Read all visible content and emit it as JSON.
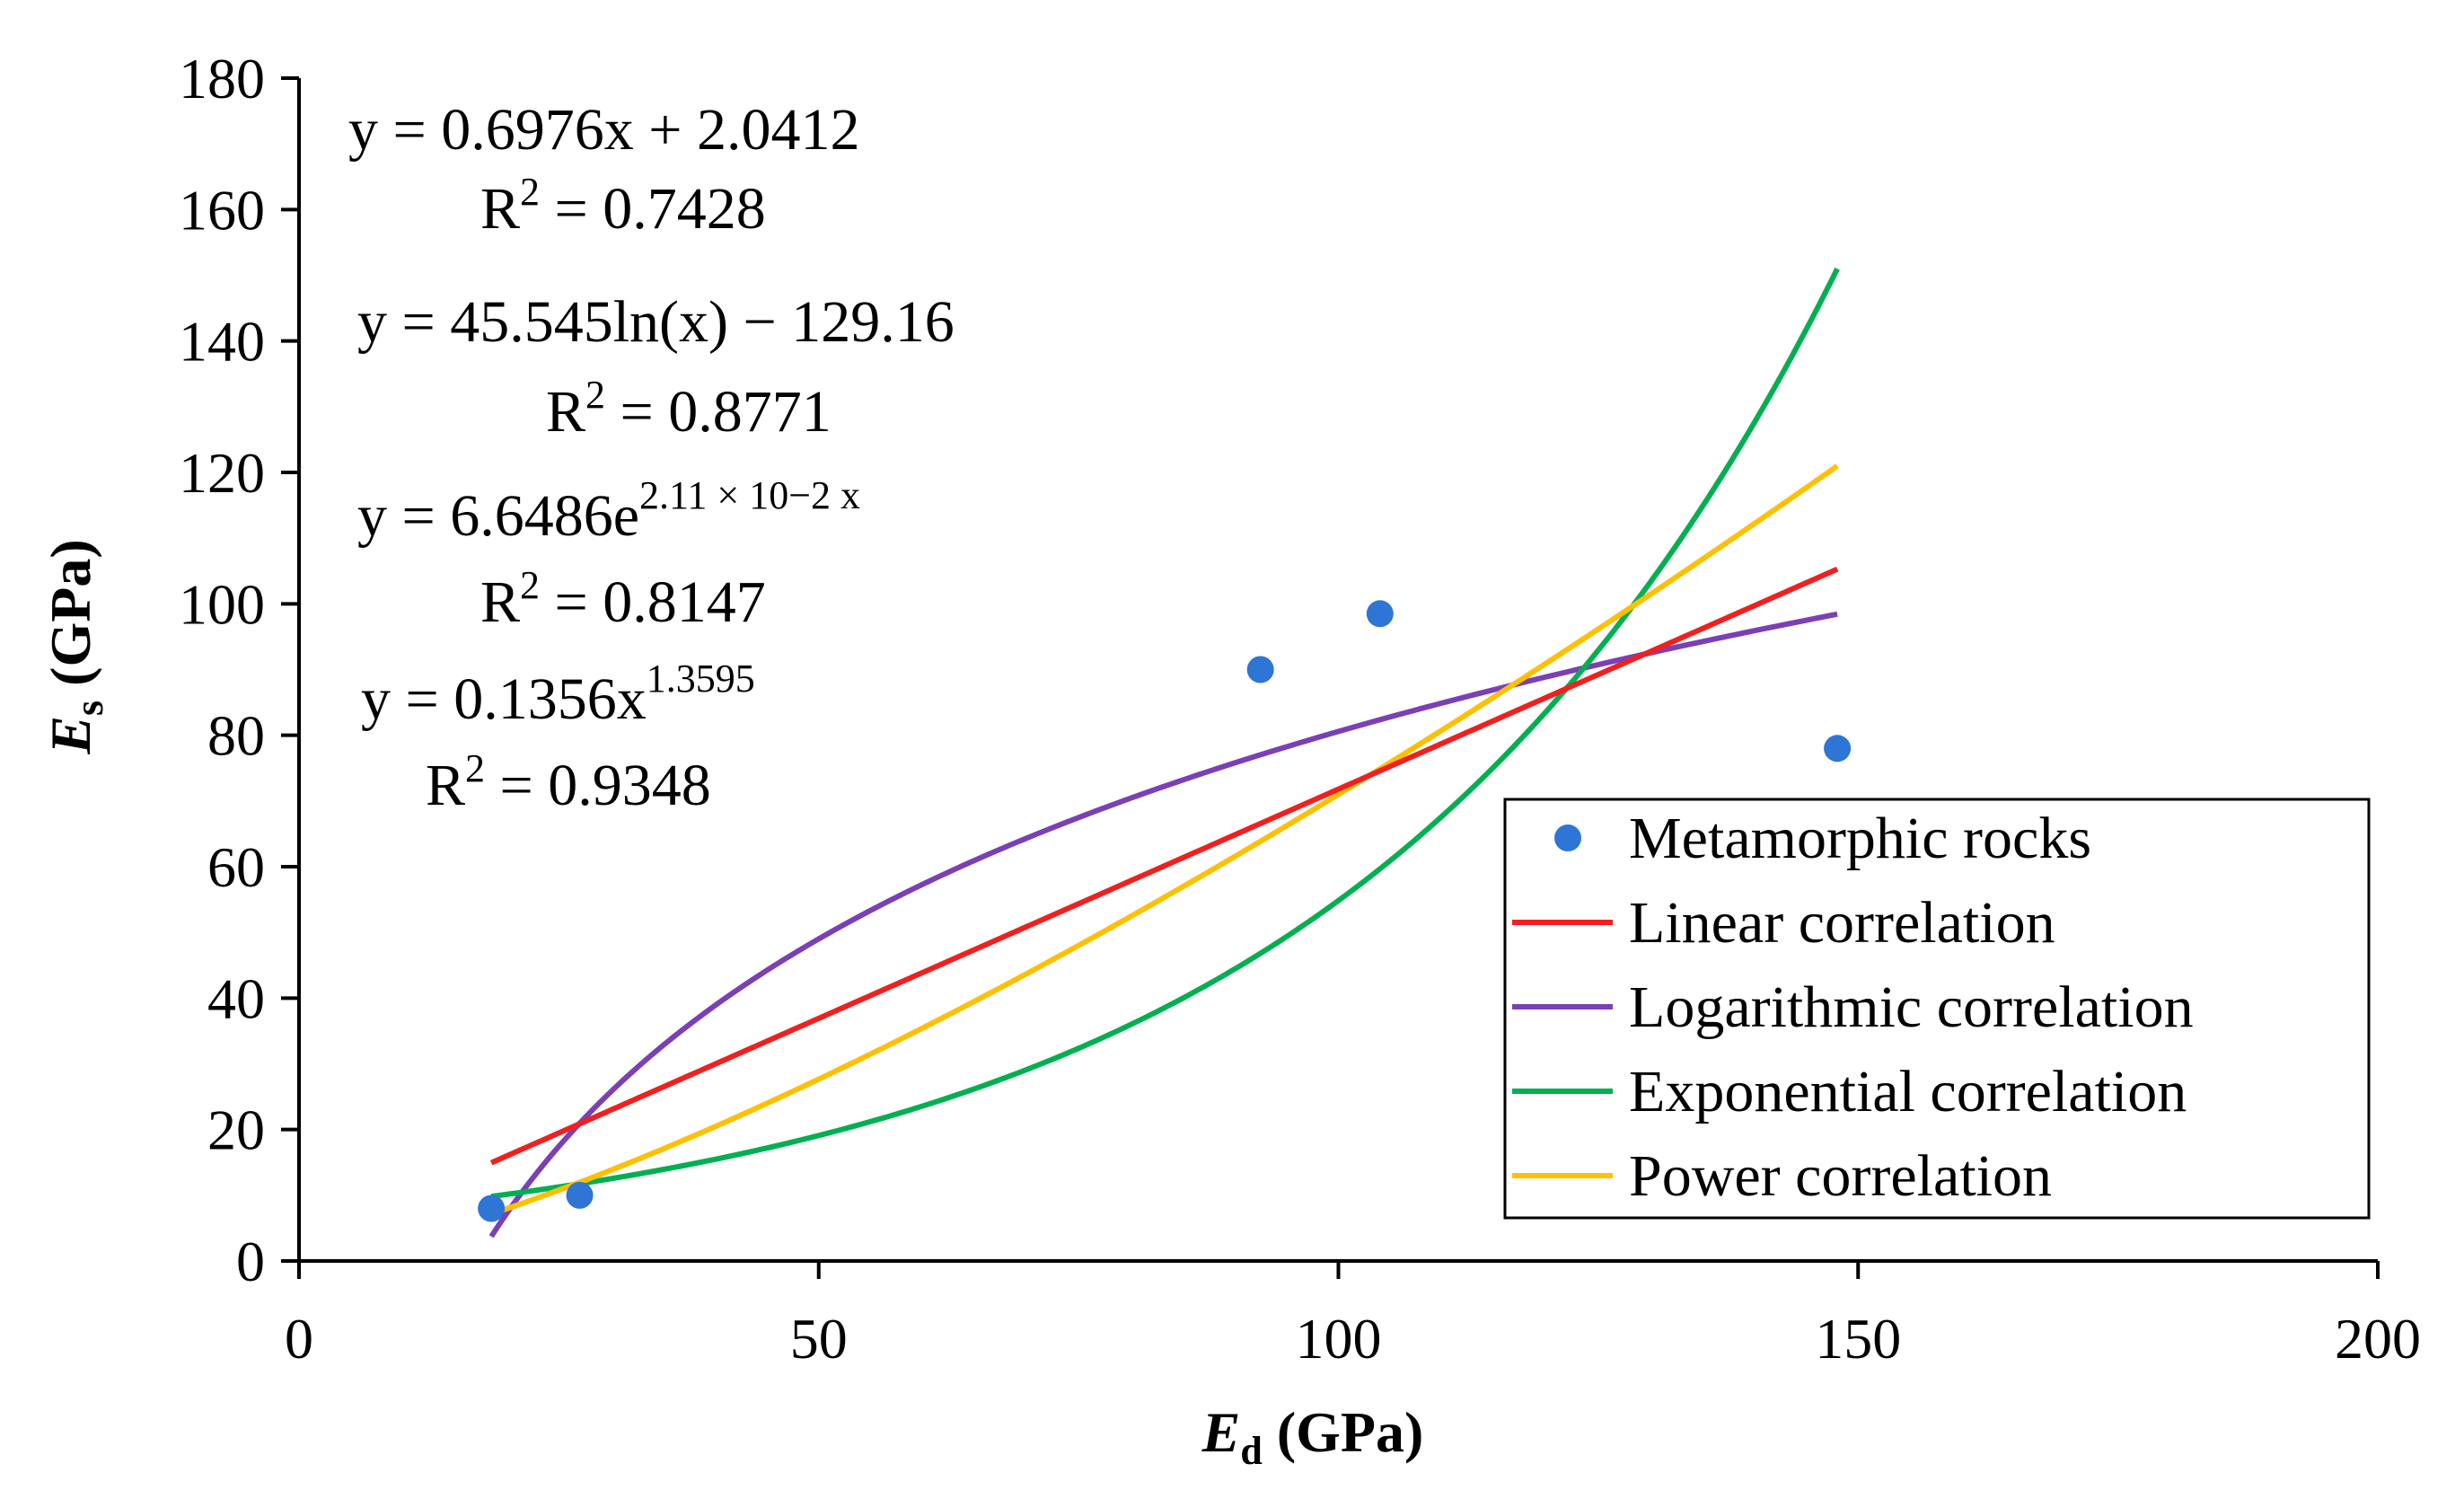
{
  "chart_data": {
    "type": "scatter",
    "title": "",
    "xlabel": {
      "main": "E",
      "sub": "d",
      "unit": " (GPa)"
    },
    "ylabel": {
      "main": "E",
      "sub": "s",
      "unit": " (GPa)"
    },
    "xlim": [
      0,
      200
    ],
    "ylim": [
      0,
      180
    ],
    "x_ticks": [
      0,
      50,
      100,
      150,
      200
    ],
    "y_ticks": [
      0,
      20,
      40,
      60,
      80,
      100,
      120,
      140,
      160,
      180
    ],
    "grid": false,
    "legend_position": "bottom-right",
    "points": {
      "name": "Metamorphic rocks",
      "color": "#2E75D6",
      "x": [
        18.5,
        27,
        92.5,
        104,
        148
      ],
      "y": [
        8,
        10,
        90,
        98.5,
        78
      ]
    },
    "fits": [
      {
        "name": "Linear correlation",
        "color": "#F21F1F",
        "kind": "linear",
        "a": 0.6976,
        "b": 2.0412,
        "x_range": [
          18.5,
          148
        ]
      },
      {
        "name": "Logarithmic correlation",
        "color": "#7B3FB6",
        "kind": "log",
        "a": 45.545,
        "b": -129.16,
        "x_range": [
          18.5,
          148
        ]
      },
      {
        "name": "Exponential correlation",
        "color": "#00B050",
        "kind": "exp",
        "a": 6.6486,
        "b": 0.0211,
        "x_range": [
          18.5,
          148
        ]
      },
      {
        "name": "Power correlation",
        "color": "#FFC000",
        "kind": "power",
        "a": 0.1356,
        "b": 1.3595,
        "x_range": [
          18.5,
          148
        ]
      }
    ],
    "annotations": [
      {
        "eq": "y = 0.6976x + 2.0412",
        "r2_label": "R",
        "r2_sup": "2",
        "r2_value": " = 0.7428"
      },
      {
        "eq": "y = 45.545ln(x) − 129.16",
        "r2_label": "R",
        "r2_sup": "2",
        "r2_value": " = 0.8771"
      },
      {
        "eq": "y = 6.6486e",
        "eq_sup": "2.11 × 10−2",
        "eq_tail": " x",
        "r2_label": "R",
        "r2_sup": "2",
        "r2_value": " = 0.8147"
      },
      {
        "eq": "y = 0.1356x",
        "eq_sup": "1.3595",
        "r2_label": "R",
        "r2_sup": "2",
        "r2_value": " = 0.9348"
      }
    ]
  }
}
